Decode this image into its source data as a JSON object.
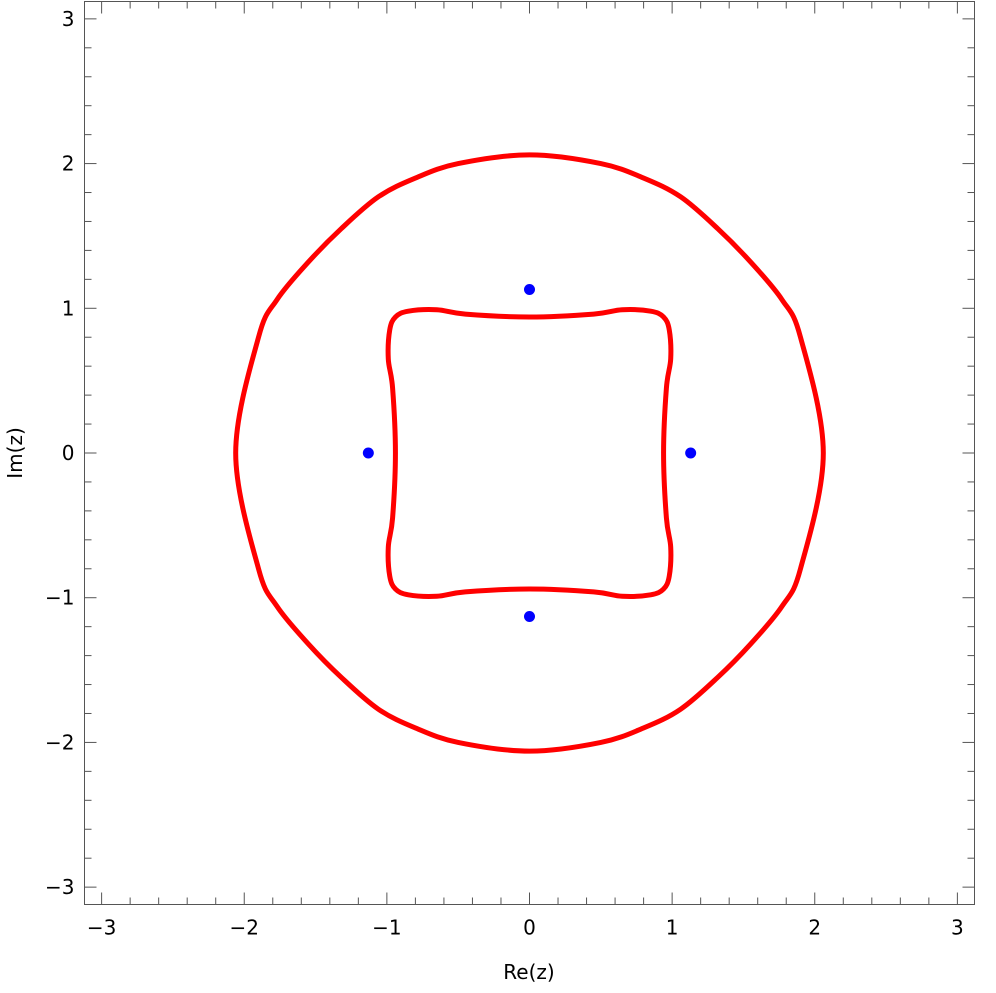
{
  "chart_data": {
    "type": "line",
    "xlabel": "Re(z)",
    "ylabel": "Im(z)",
    "xlim": [
      -3.12,
      3.12
    ],
    "ylim": [
      -3.12,
      3.12
    ],
    "x_ticks": [
      -3,
      -2,
      -1,
      0,
      1,
      2,
      3
    ],
    "y_ticks": [
      -3,
      -2,
      -1,
      0,
      1,
      2,
      3
    ],
    "x_tick_labels": [
      "−3",
      "−2",
      "−1",
      "0",
      "1",
      "2",
      "3"
    ],
    "y_tick_labels": [
      "−3",
      "−2",
      "−1",
      "0",
      "1",
      "2",
      "3"
    ],
    "grid": false,
    "series": [
      {
        "kind": "closed-curve",
        "color": "#ff0000",
        "x": [
          2.06,
          1.9,
          1.77,
          1.55,
          1.32,
          1.06,
          0.8,
          0.5,
          0.0,
          -0.5,
          -0.8,
          -1.06,
          -1.32,
          -1.55,
          -1.77,
          -1.9,
          -2.06,
          -1.9,
          -1.77,
          -1.55,
          -1.32,
          -1.06,
          -0.8,
          -0.5,
          0.0,
          0.5,
          0.8,
          1.06,
          1.32,
          1.55,
          1.77,
          1.9
        ],
        "y": [
          0.0,
          0.8,
          1.06,
          1.32,
          1.55,
          1.77,
          1.9,
          2.0,
          2.06,
          2.0,
          1.9,
          1.77,
          1.55,
          1.32,
          1.06,
          0.8,
          0.0,
          -0.8,
          -1.06,
          -1.32,
          -1.55,
          -1.77,
          -1.9,
          -2.0,
          -2.06,
          -2.0,
          -1.9,
          -1.77,
          -1.55,
          -1.32,
          -1.06,
          -0.8
        ]
      },
      {
        "kind": "closed-curve",
        "color": "#ff0000",
        "x": [
          0.94,
          0.96,
          0.99,
          0.98,
          0.94,
          0.85,
          0.65,
          0.45,
          0.0,
          -0.45,
          -0.65,
          -0.85,
          -0.94,
          -0.98,
          -0.99,
          -0.96,
          -0.94,
          -0.96,
          -0.99,
          -0.98,
          -0.94,
          -0.85,
          -0.65,
          -0.45,
          0.0,
          0.45,
          0.65,
          0.85,
          0.94,
          0.98,
          0.99,
          0.96
        ],
        "y": [
          0.0,
          0.45,
          0.65,
          0.85,
          0.94,
          0.98,
          0.99,
          0.96,
          0.94,
          0.96,
          0.99,
          0.98,
          0.94,
          0.85,
          0.65,
          0.45,
          0.0,
          -0.45,
          -0.65,
          -0.85,
          -0.94,
          -0.98,
          -0.99,
          -0.96,
          -0.94,
          -0.96,
          -0.99,
          -0.98,
          -0.94,
          -0.85,
          -0.65,
          -0.45
        ]
      },
      {
        "kind": "points",
        "color": "#0000ff",
        "x": [
          0.0,
          -1.13,
          1.13,
          0.0
        ],
        "y": [
          1.13,
          0.0,
          0.0,
          -1.13
        ]
      }
    ]
  }
}
